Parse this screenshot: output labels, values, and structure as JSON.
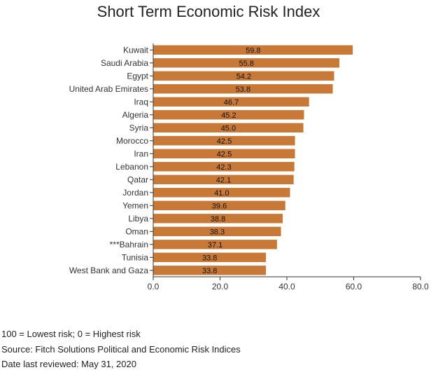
{
  "chart_data": {
    "type": "bar",
    "orientation": "horizontal",
    "title": "Short Term Economic Risk Index",
    "categories": [
      "Kuwait",
      "Saudi Arabia",
      "Egypt",
      "United Arab Emirates",
      "Iraq",
      "Algeria",
      "Syria",
      "Morocco",
      "Iran",
      "Lebanon",
      "Qatar",
      "Jordan",
      "Yemen",
      "Libya",
      "Oman",
      "***Bahrain",
      "Tunisia",
      "West Bank and Gaza"
    ],
    "values": [
      59.8,
      55.8,
      54.2,
      53.8,
      46.7,
      45.2,
      45.0,
      42.5,
      42.5,
      42.3,
      42.1,
      41.0,
      39.6,
      38.8,
      38.3,
      37.1,
      33.8,
      33.8
    ],
    "value_labels": [
      "59.8",
      "55.8",
      "54.2",
      "53.8",
      "46.7",
      "45.2",
      "45.0",
      "42.5",
      "42.5",
      "42.3",
      "42.1",
      "41.0",
      "39.6",
      "38.8",
      "38.3",
      "37.1",
      "33.8",
      "33.8"
    ],
    "xlim": [
      0,
      80
    ],
    "xticks": [
      "0.0",
      "20.0",
      "40.0",
      "60.0",
      "80.0"
    ],
    "xlabel": "",
    "ylabel": "",
    "grid": false,
    "bar_color": "#C87937"
  },
  "notes": [
    "100 = Lowest risk; 0 = Highest risk",
    "Source: Fitch Solutions Political and Economic Risk Indices",
    "Date last reviewed: May 31, 2020"
  ]
}
